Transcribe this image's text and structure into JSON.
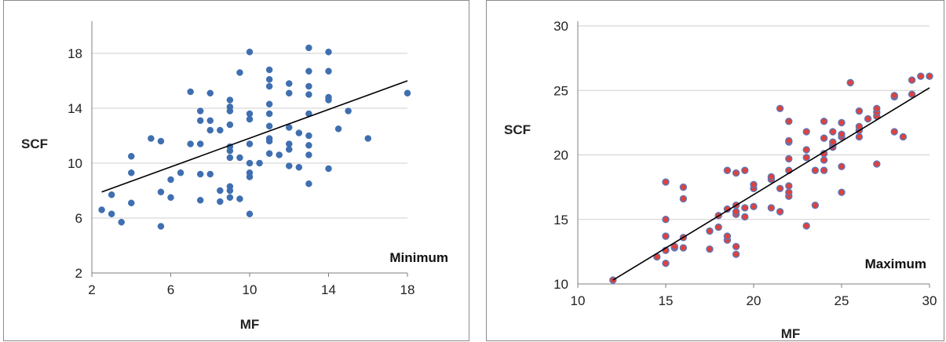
{
  "chart_data": [
    {
      "type": "scatter",
      "label": "Minimum",
      "xlabel": "MF",
      "ylabel": "SCF",
      "xlim": [
        2,
        18
      ],
      "ylim": [
        2,
        20
      ],
      "xticks": [
        2,
        6,
        10,
        14,
        18
      ],
      "yticks": [
        2,
        6,
        10,
        14,
        18
      ],
      "grid": "horizontal",
      "marker_color": "#3f6fb0",
      "trendline": {
        "x": [
          2.5,
          18
        ],
        "y": [
          7.9,
          16.0
        ]
      },
      "points": [
        [
          2.5,
          6.6
        ],
        [
          3,
          6.3
        ],
        [
          3,
          7.7
        ],
        [
          3.5,
          5.7
        ],
        [
          4,
          7.1
        ],
        [
          4,
          9.3
        ],
        [
          4,
          10.5
        ],
        [
          5,
          11.8
        ],
        [
          5.5,
          11.6
        ],
        [
          5.5,
          7.9
        ],
        [
          5.5,
          5.4
        ],
        [
          6,
          8.8
        ],
        [
          6,
          7.5
        ],
        [
          6.5,
          9.3
        ],
        [
          7,
          15.2
        ],
        [
          7,
          11.4
        ],
        [
          7.5,
          13.8
        ],
        [
          7.5,
          13.1
        ],
        [
          7.5,
          11.4
        ],
        [
          7.5,
          9.2
        ],
        [
          7.5,
          7.3
        ],
        [
          8,
          15.1
        ],
        [
          8,
          13.1
        ],
        [
          8,
          12.4
        ],
        [
          8,
          9.2
        ],
        [
          8.5,
          12.4
        ],
        [
          8.5,
          8.0
        ],
        [
          8.5,
          7.2
        ],
        [
          9,
          14.6
        ],
        [
          9,
          14.1
        ],
        [
          9,
          13.8
        ],
        [
          9,
          12.8
        ],
        [
          9,
          11.2
        ],
        [
          9,
          10.9
        ],
        [
          9,
          10.4
        ],
        [
          9,
          8.3
        ],
        [
          9,
          8.0
        ],
        [
          9,
          7.5
        ],
        [
          9.5,
          16.6
        ],
        [
          9.5,
          10.4
        ],
        [
          9.5,
          7.4
        ],
        [
          10,
          18.1
        ],
        [
          10,
          13.6
        ],
        [
          10,
          13.2
        ],
        [
          10,
          11.4
        ],
        [
          10,
          10.0
        ],
        [
          10,
          9.3
        ],
        [
          10,
          9.0
        ],
        [
          10,
          6.3
        ],
        [
          10.5,
          10.0
        ],
        [
          11,
          16.8
        ],
        [
          11,
          16.1
        ],
        [
          11,
          15.6
        ],
        [
          11,
          14.3
        ],
        [
          11,
          13.6
        ],
        [
          11,
          12.7
        ],
        [
          11,
          11.8
        ],
        [
          11,
          11.6
        ],
        [
          11,
          10.7
        ],
        [
          11.5,
          10.6
        ],
        [
          12,
          15.8
        ],
        [
          12,
          15.1
        ],
        [
          12,
          12.6
        ],
        [
          12,
          11.4
        ],
        [
          12,
          11.0
        ],
        [
          12,
          9.8
        ],
        [
          12.5,
          12.2
        ],
        [
          12.5,
          9.7
        ],
        [
          13,
          18.4
        ],
        [
          13,
          16.7
        ],
        [
          13,
          15.6
        ],
        [
          13,
          15.0
        ],
        [
          13,
          13.6
        ],
        [
          13,
          12.0
        ],
        [
          13,
          11.3
        ],
        [
          13,
          10.6
        ],
        [
          13,
          8.5
        ],
        [
          14,
          18.1
        ],
        [
          14,
          16.7
        ],
        [
          14,
          14.8
        ],
        [
          14,
          14.6
        ],
        [
          14,
          9.6
        ],
        [
          14.5,
          12.5
        ],
        [
          15,
          13.8
        ],
        [
          16,
          11.8
        ],
        [
          18,
          15.1
        ]
      ]
    },
    {
      "type": "scatter",
      "label": "Maximum",
      "xlabel": "MF",
      "ylabel": "SCF",
      "xlim": [
        10,
        30
      ],
      "ylim": [
        10,
        30
      ],
      "xticks": [
        10,
        15,
        20,
        25,
        30
      ],
      "yticks": [
        10,
        15,
        20,
        25,
        30
      ],
      "grid": "horizontal",
      "marker_color": "#e0413c",
      "marker_edge": "#5b78b8",
      "trendline": {
        "x": [
          12,
          30
        ],
        "y": [
          10.3,
          25.2
        ]
      },
      "points": [
        [
          12,
          10.3
        ],
        [
          14.5,
          12.1
        ],
        [
          15,
          11.6
        ],
        [
          15,
          12.6
        ],
        [
          15,
          13.7
        ],
        [
          15,
          15.0
        ],
        [
          15,
          17.9
        ],
        [
          15.5,
          12.8
        ],
        [
          15.5,
          12.9
        ],
        [
          16,
          12.8
        ],
        [
          16,
          13.6
        ],
        [
          16,
          16.6
        ],
        [
          16,
          17.5
        ],
        [
          17.5,
          12.7
        ],
        [
          17.5,
          14.1
        ],
        [
          18,
          14.4
        ],
        [
          18,
          15.3
        ],
        [
          18.5,
          13.4
        ],
        [
          18.5,
          13.7
        ],
        [
          18.5,
          15.8
        ],
        [
          18.5,
          18.8
        ],
        [
          19,
          12.3
        ],
        [
          19,
          12.9
        ],
        [
          19,
          15.4
        ],
        [
          19,
          15.6
        ],
        [
          19,
          16.1
        ],
        [
          19,
          18.6
        ],
        [
          19.5,
          15.2
        ],
        [
          19.5,
          15.9
        ],
        [
          19.5,
          18.8
        ],
        [
          20,
          16.0
        ],
        [
          20,
          17.4
        ],
        [
          20,
          17.7
        ],
        [
          21,
          15.9
        ],
        [
          21,
          18.1
        ],
        [
          21,
          18.3
        ],
        [
          21.5,
          15.6
        ],
        [
          21.5,
          17.4
        ],
        [
          21.5,
          23.6
        ],
        [
          22,
          16.8
        ],
        [
          22,
          17.1
        ],
        [
          22,
          17.6
        ],
        [
          22,
          18.8
        ],
        [
          22,
          19.7
        ],
        [
          22,
          21.0
        ],
        [
          22,
          21.1
        ],
        [
          22,
          22.6
        ],
        [
          23,
          14.5
        ],
        [
          23,
          19.8
        ],
        [
          23,
          20.4
        ],
        [
          23,
          21.8
        ],
        [
          23.5,
          16.1
        ],
        [
          23.5,
          18.8
        ],
        [
          24,
          18.8
        ],
        [
          24,
          19.6
        ],
        [
          24,
          20.1
        ],
        [
          24,
          21.3
        ],
        [
          24,
          22.6
        ],
        [
          24.5,
          20.6
        ],
        [
          24.5,
          20.8
        ],
        [
          24.5,
          21.0
        ],
        [
          24.5,
          21.8
        ],
        [
          25,
          17.1
        ],
        [
          25,
          19.1
        ],
        [
          25,
          21.4
        ],
        [
          25,
          21.6
        ],
        [
          25,
          22.5
        ],
        [
          25.5,
          25.6
        ],
        [
          26,
          21.4
        ],
        [
          26,
          21.9
        ],
        [
          26,
          22.2
        ],
        [
          26,
          23.4
        ],
        [
          26.5,
          22.8
        ],
        [
          27,
          19.3
        ],
        [
          27,
          23.0
        ],
        [
          27,
          23.3
        ],
        [
          27,
          23.6
        ],
        [
          28,
          21.8
        ],
        [
          28,
          24.5
        ],
        [
          28,
          24.6
        ],
        [
          28.5,
          21.4
        ],
        [
          29,
          24.7
        ],
        [
          29,
          25.8
        ],
        [
          29.5,
          26.1
        ],
        [
          30,
          26.1
        ]
      ]
    }
  ]
}
